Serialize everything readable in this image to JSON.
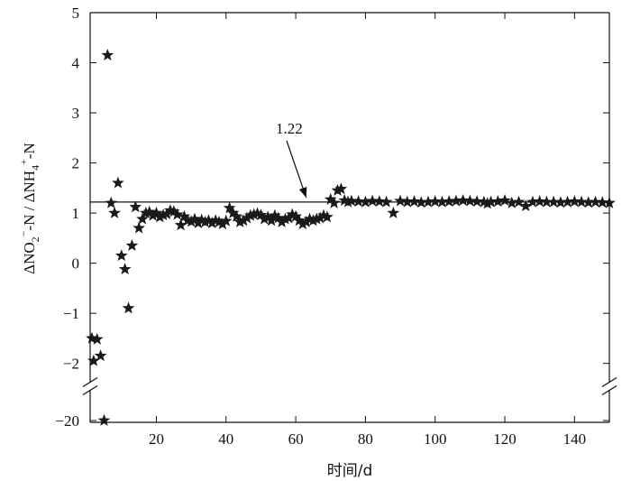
{
  "chart_data": {
    "type": "scatter",
    "marker": "star",
    "marker_color": "#1a1a1a",
    "xlabel": "时间/d",
    "ylabel": "ΔNO2−-N / ΔNH4+-N",
    "ylabel_parts": {
      "a": "ΔNO",
      "a_sub": "2",
      "a_sup": "−",
      "b": "-N / ΔNH",
      "b_sub": "4",
      "b_sup": "+",
      "c": "-N"
    },
    "xlim": [
      1,
      150
    ],
    "ylim_main": [
      -2.6,
      5
    ],
    "ylim_broken": [
      -20,
      -20
    ],
    "y_axis_break": true,
    "xticks": [
      20,
      40,
      60,
      80,
      100,
      120,
      140
    ],
    "yticks": [
      5,
      4,
      3,
      2,
      1,
      0,
      -1,
      -2,
      -20
    ],
    "ytick_labels": [
      "5",
      "4",
      "3",
      "2",
      "1",
      "0",
      "−1",
      "−2",
      "−20"
    ],
    "reference_line": {
      "value": 1.22,
      "label": "1.22",
      "x_range": [
        1,
        150
      ]
    },
    "points": [
      {
        "x": 1.5,
        "y": -1.5
      },
      {
        "x": 2,
        "y": -1.95
      },
      {
        "x": 3,
        "y": -1.52
      },
      {
        "x": 4,
        "y": -1.85
      },
      {
        "x": 5,
        "y": -20
      },
      {
        "x": 6,
        "y": 4.15
      },
      {
        "x": 7,
        "y": 1.2
      },
      {
        "x": 8,
        "y": 1.0
      },
      {
        "x": 9,
        "y": 1.6
      },
      {
        "x": 10,
        "y": 0.15
      },
      {
        "x": 11,
        "y": -0.12
      },
      {
        "x": 12,
        "y": -0.9
      },
      {
        "x": 13,
        "y": 0.35
      },
      {
        "x": 14,
        "y": 1.12
      },
      {
        "x": 15,
        "y": 0.7
      },
      {
        "x": 16,
        "y": 0.88
      },
      {
        "x": 17,
        "y": 1.0
      },
      {
        "x": 18,
        "y": 1.02
      },
      {
        "x": 19,
        "y": 0.95
      },
      {
        "x": 20,
        "y": 1.0
      },
      {
        "x": 21,
        "y": 0.92
      },
      {
        "x": 22,
        "y": 0.96
      },
      {
        "x": 23,
        "y": 0.98
      },
      {
        "x": 24,
        "y": 1.05
      },
      {
        "x": 25,
        "y": 1.03
      },
      {
        "x": 26,
        "y": 0.97
      },
      {
        "x": 27,
        "y": 0.76
      },
      {
        "x": 28,
        "y": 0.93
      },
      {
        "x": 29,
        "y": 0.85
      },
      {
        "x": 30,
        "y": 0.83
      },
      {
        "x": 31,
        "y": 0.88
      },
      {
        "x": 32,
        "y": 0.8
      },
      {
        "x": 33,
        "y": 0.86
      },
      {
        "x": 34,
        "y": 0.82
      },
      {
        "x": 35,
        "y": 0.85
      },
      {
        "x": 36,
        "y": 0.8
      },
      {
        "x": 37,
        "y": 0.85
      },
      {
        "x": 38,
        "y": 0.82
      },
      {
        "x": 39,
        "y": 0.78
      },
      {
        "x": 40,
        "y": 0.84
      },
      {
        "x": 41,
        "y": 1.1
      },
      {
        "x": 42,
        "y": 1.0
      },
      {
        "x": 43,
        "y": 0.93
      },
      {
        "x": 44,
        "y": 0.82
      },
      {
        "x": 45,
        "y": 0.85
      },
      {
        "x": 46,
        "y": 0.9
      },
      {
        "x": 47,
        "y": 0.95
      },
      {
        "x": 48,
        "y": 0.97
      },
      {
        "x": 49,
        "y": 0.99
      },
      {
        "x": 50,
        "y": 0.96
      },
      {
        "x": 51,
        "y": 0.88
      },
      {
        "x": 52,
        "y": 0.92
      },
      {
        "x": 53,
        "y": 0.85
      },
      {
        "x": 54,
        "y": 0.95
      },
      {
        "x": 55,
        "y": 0.9
      },
      {
        "x": 56,
        "y": 0.82
      },
      {
        "x": 57,
        "y": 0.88
      },
      {
        "x": 58,
        "y": 0.9
      },
      {
        "x": 59,
        "y": 0.97
      },
      {
        "x": 60,
        "y": 0.93
      },
      {
        "x": 61,
        "y": 0.85
      },
      {
        "x": 62,
        "y": 0.78
      },
      {
        "x": 63,
        "y": 0.82
      },
      {
        "x": 64,
        "y": 0.88
      },
      {
        "x": 65,
        "y": 0.85
      },
      {
        "x": 66,
        "y": 0.88
      },
      {
        "x": 67,
        "y": 0.9
      },
      {
        "x": 68,
        "y": 0.95
      },
      {
        "x": 69,
        "y": 0.92
      },
      {
        "x": 70,
        "y": 1.27
      },
      {
        "x": 71,
        "y": 1.2
      },
      {
        "x": 72,
        "y": 1.45
      },
      {
        "x": 73,
        "y": 1.48
      },
      {
        "x": 74,
        "y": 1.25
      },
      {
        "x": 75,
        "y": 1.22
      },
      {
        "x": 76,
        "y": 1.24
      },
      {
        "x": 78,
        "y": 1.23
      },
      {
        "x": 80,
        "y": 1.22
      },
      {
        "x": 82,
        "y": 1.24
      },
      {
        "x": 84,
        "y": 1.23
      },
      {
        "x": 86,
        "y": 1.22
      },
      {
        "x": 88,
        "y": 1.0
      },
      {
        "x": 90,
        "y": 1.24
      },
      {
        "x": 92,
        "y": 1.22
      },
      {
        "x": 94,
        "y": 1.23
      },
      {
        "x": 96,
        "y": 1.21
      },
      {
        "x": 98,
        "y": 1.22
      },
      {
        "x": 100,
        "y": 1.23
      },
      {
        "x": 102,
        "y": 1.22
      },
      {
        "x": 104,
        "y": 1.23
      },
      {
        "x": 106,
        "y": 1.24
      },
      {
        "x": 108,
        "y": 1.25
      },
      {
        "x": 110,
        "y": 1.24
      },
      {
        "x": 112,
        "y": 1.23
      },
      {
        "x": 114,
        "y": 1.22
      },
      {
        "x": 115,
        "y": 1.19
      },
      {
        "x": 116,
        "y": 1.22
      },
      {
        "x": 118,
        "y": 1.23
      },
      {
        "x": 120,
        "y": 1.25
      },
      {
        "x": 122,
        "y": 1.2
      },
      {
        "x": 124,
        "y": 1.22
      },
      {
        "x": 126,
        "y": 1.14
      },
      {
        "x": 128,
        "y": 1.22
      },
      {
        "x": 130,
        "y": 1.23
      },
      {
        "x": 132,
        "y": 1.22
      },
      {
        "x": 134,
        "y": 1.22
      },
      {
        "x": 136,
        "y": 1.21
      },
      {
        "x": 138,
        "y": 1.22
      },
      {
        "x": 140,
        "y": 1.23
      },
      {
        "x": 142,
        "y": 1.22
      },
      {
        "x": 144,
        "y": 1.21
      },
      {
        "x": 146,
        "y": 1.22
      },
      {
        "x": 148,
        "y": 1.21
      },
      {
        "x": 150,
        "y": 1.2
      }
    ]
  }
}
